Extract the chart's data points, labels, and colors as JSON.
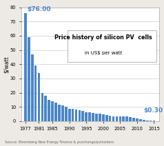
{
  "years": [
    1977,
    1978,
    1979,
    1980,
    1981,
    1982,
    1983,
    1984,
    1985,
    1986,
    1987,
    1988,
    1989,
    1990,
    1991,
    1992,
    1993,
    1994,
    1995,
    1996,
    1997,
    1998,
    1999,
    2000,
    2001,
    2002,
    2003,
    2004,
    2005,
    2006,
    2007,
    2008,
    2009,
    2010,
    2011,
    2012,
    2013,
    2014,
    2015
  ],
  "values": [
    76.0,
    59.0,
    47.0,
    39.0,
    34.0,
    20.0,
    18.0,
    15.0,
    14.0,
    13.0,
    11.5,
    11.0,
    10.0,
    8.5,
    8.5,
    8.0,
    7.5,
    7.0,
    6.5,
    6.5,
    6.0,
    5.5,
    5.5,
    5.0,
    4.5,
    4.0,
    3.5,
    3.5,
    3.2,
    3.5,
    3.5,
    3.0,
    2.5,
    1.8,
    1.2,
    0.8,
    0.6,
    0.4,
    0.3
  ],
  "bar_color": "#4a86c8",
  "title_line1": "Price history of silicon PV  cells",
  "title_line2": "in US$ per watt",
  "ylabel": "$/watt",
  "annotation_first": "$76.00",
  "annotation_last": "$0.30",
  "annotation_color": "#4a86c8",
  "source_text": "Source: Bloomberg New Energy Finance & pvxchange/pvinsiders",
  "background_color": "#ede9e4",
  "plot_bg_color": "#ffffff",
  "xlim_left": 1975.8,
  "xlim_right": 2016.5,
  "ylim_top": 80,
  "xticks": [
    1977,
    1981,
    1985,
    1990,
    1995,
    2000,
    2005,
    2010,
    2015
  ],
  "yticks": [
    0,
    10,
    20,
    30,
    40,
    50,
    60,
    70,
    80
  ]
}
